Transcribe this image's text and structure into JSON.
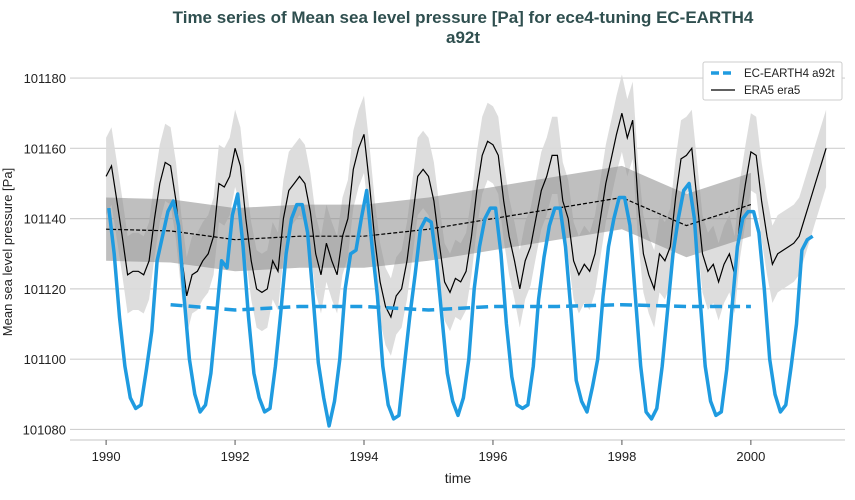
{
  "chart_data": {
    "type": "line",
    "title_line1": "Time series of Mean sea level pressure [Pa] for ece4-tuning EC-EARTH4",
    "title_line2": "a92t",
    "xlabel": "time",
    "ylabel": "Mean sea level pressure [Pa]",
    "xlim": [
      1989.44,
      2001.46
    ],
    "ylim": [
      101077,
      101184
    ],
    "x_ticks": [
      "1990",
      "1992",
      "1994",
      "1996",
      "1998",
      "2000"
    ],
    "y_ticks": [
      "101080",
      "101100",
      "101120",
      "101140",
      "101160",
      "101180"
    ],
    "grid": "horizontal",
    "legend_position": "top-right",
    "colors": {
      "ec_earth": "#1f9be0",
      "era5": "#000000",
      "era5_band": "#d9d9d9",
      "era5_annual_band": "#a8a8a8",
      "title": "#2f4f4f"
    },
    "legend": [
      {
        "label": "EC-EARTH4 a92t",
        "style": "dashed-blue"
      },
      {
        "label": "ERA5 era5",
        "style": "solid-black"
      }
    ],
    "ec_earth_monthly": {
      "start": "1990-01",
      "values": [
        101143,
        101130,
        101112,
        101098,
        101089,
        101086,
        101087,
        101097,
        101108,
        101128,
        101135,
        101142,
        101145,
        101138,
        101118,
        101100,
        101090,
        101085,
        101087,
        101096,
        101112,
        101128,
        101126,
        101141,
        101147,
        101132,
        101112,
        101096,
        101089,
        101085,
        101086,
        101098,
        101113,
        101130,
        101140,
        101144,
        101144,
        101136,
        101118,
        101099,
        101089,
        101081,
        101088,
        101100,
        101120,
        101130,
        101131,
        101140,
        101148,
        101132,
        101118,
        101098,
        101087,
        101083,
        101084,
        101098,
        101112,
        101124,
        101137,
        101140,
        101139,
        101128,
        101112,
        101096,
        101088,
        101084,
        101089,
        101100,
        101120,
        101132,
        101140,
        101143,
        101143,
        101130,
        101110,
        101095,
        101087,
        101086,
        101087,
        101098,
        101117,
        101129,
        101138,
        101143,
        101143,
        101132,
        101114,
        101094,
        101088,
        101085,
        101092,
        101100,
        101118,
        101132,
        101140,
        101146,
        101146,
        101138,
        101118,
        101098,
        101085,
        101083,
        101086,
        101098,
        101114,
        101130,
        101140,
        101148,
        101150,
        101140,
        101118,
        101098,
        101088,
        101084,
        101085,
        101097,
        101115,
        101132,
        101140,
        101142,
        101142,
        101136,
        101120,
        101100,
        101090,
        101085,
        101087,
        101098,
        101110,
        101131,
        101134,
        101135
      ]
    },
    "ec_earth_annual_mean": {
      "years": [
        1991,
        1992,
        1993,
        1994,
        1995,
        1996,
        1997,
        1998,
        1999,
        2000
      ],
      "values": [
        101115.5,
        101114,
        101115,
        101115,
        101114,
        101115,
        101115,
        101115.5,
        101115,
        101115
      ]
    },
    "era5_monthly": {
      "start": "1990-01",
      "spread": 11,
      "values": [
        101152,
        101155,
        101145,
        101135,
        101124,
        101125,
        101125,
        101124,
        101128,
        101140,
        101150,
        101156,
        101155,
        101145,
        101130,
        101118,
        101124,
        101125,
        101128,
        101130,
        101135,
        101150,
        101149,
        101152,
        101160,
        101155,
        101140,
        101128,
        101120,
        101119,
        101120,
        101128,
        101125,
        101140,
        101148,
        101150,
        101152,
        101150,
        101142,
        101130,
        101124,
        101133,
        101128,
        101124,
        101135,
        101140,
        101154,
        101160,
        101164,
        101150,
        101134,
        101122,
        101115,
        101112,
        101118,
        101120,
        101128,
        101140,
        101152,
        101154,
        101152,
        101145,
        101133,
        101122,
        101119,
        101123,
        101122,
        101125,
        101135,
        101148,
        101158,
        101162,
        101161,
        101158,
        101145,
        101135,
        101128,
        101120,
        101128,
        101132,
        101140,
        101148,
        101152,
        101158,
        101158,
        101145,
        101140,
        101128,
        101124,
        101127,
        101125,
        101130,
        101140,
        101150,
        101157,
        101164,
        101170,
        101163,
        101168,
        101145,
        101130,
        101124,
        101120,
        101130,
        101128,
        101132,
        101146,
        101157,
        101158,
        101160,
        101145,
        101130,
        101125,
        101127,
        101122,
        101127,
        101130,
        101124,
        101140,
        101150,
        101159,
        101158,
        101145,
        101135,
        101127,
        101130,
        101131,
        101132,
        101133,
        101135,
        101140,
        101145,
        101150,
        101155,
        101160
      ]
    },
    "era5_annual_mean": {
      "years": [
        1990,
        1991,
        1992,
        1993,
        1994,
        1995,
        1996,
        1997,
        1998,
        1999,
        2000
      ],
      "values": [
        101137,
        101136.5,
        101134,
        101135,
        101135,
        101137,
        101140,
        101143,
        101146,
        101138,
        101144
      ],
      "spread": 9
    }
  }
}
